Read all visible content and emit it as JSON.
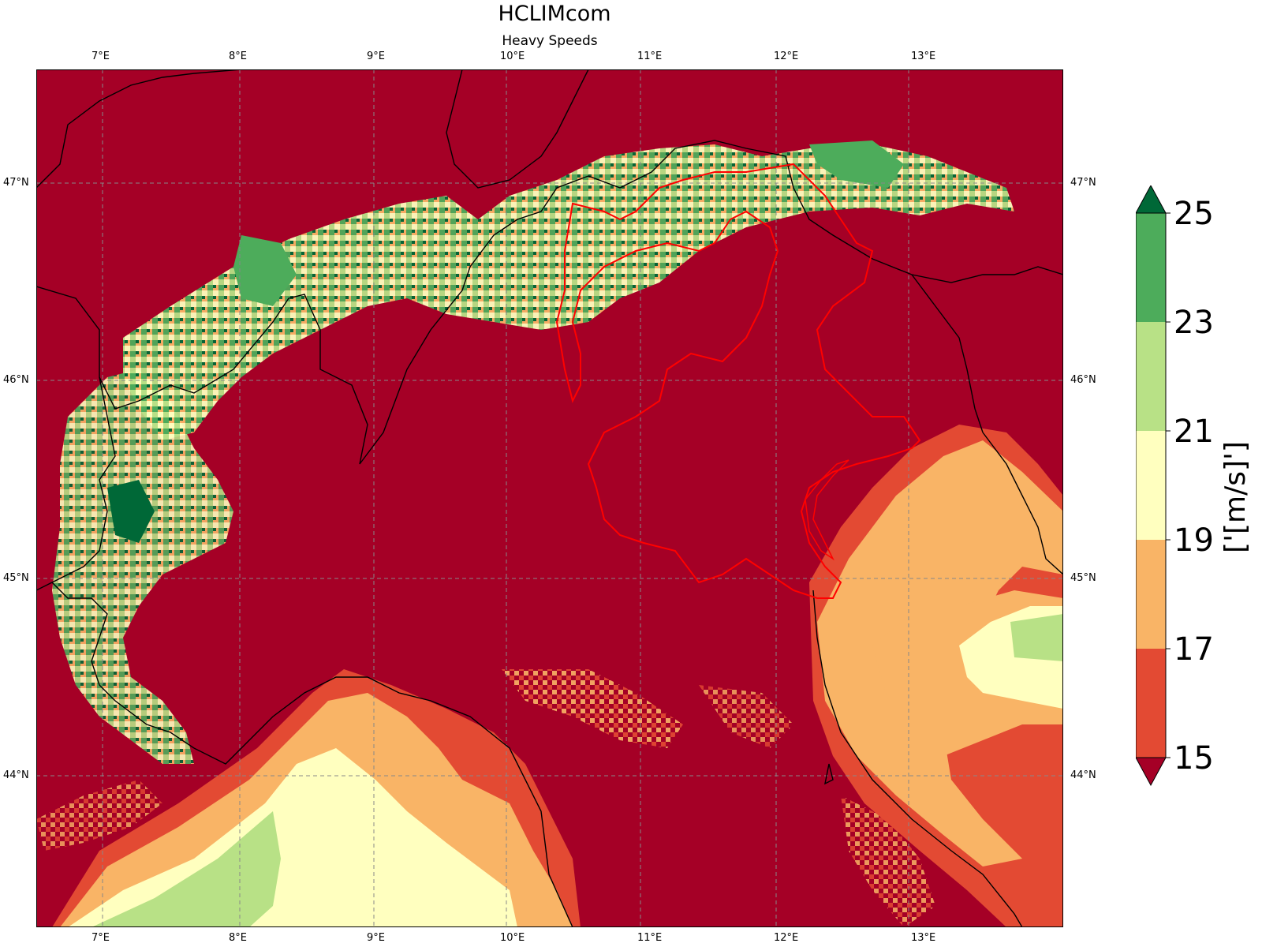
{
  "title": "HCLIMcom",
  "subtitle": "Heavy Speeds",
  "map": {
    "lon_range": [
      6.5,
      13.95
    ],
    "lat_range": [
      43.3,
      47.65
    ],
    "lon_ticks": [
      "7°E",
      "8°E",
      "9°E",
      "10°E",
      "11°E",
      "12°E",
      "13°E"
    ],
    "lat_ticks": [
      "47°N",
      "46°N",
      "45°N",
      "44°N"
    ],
    "gridlines": true,
    "background_color": "#a50026",
    "border_color": "#000000",
    "highlight_region_color": "#ff0000"
  },
  "colorbar": {
    "label": "['[m/s]']",
    "tick_labels": [
      "15",
      "17",
      "19",
      "21",
      "23",
      "25"
    ],
    "colors": [
      "#a50026",
      "#e34a33",
      "#f9b466",
      "#ffffbf",
      "#b8e186",
      "#4dac5b",
      "#006837"
    ],
    "extend": "both"
  }
}
